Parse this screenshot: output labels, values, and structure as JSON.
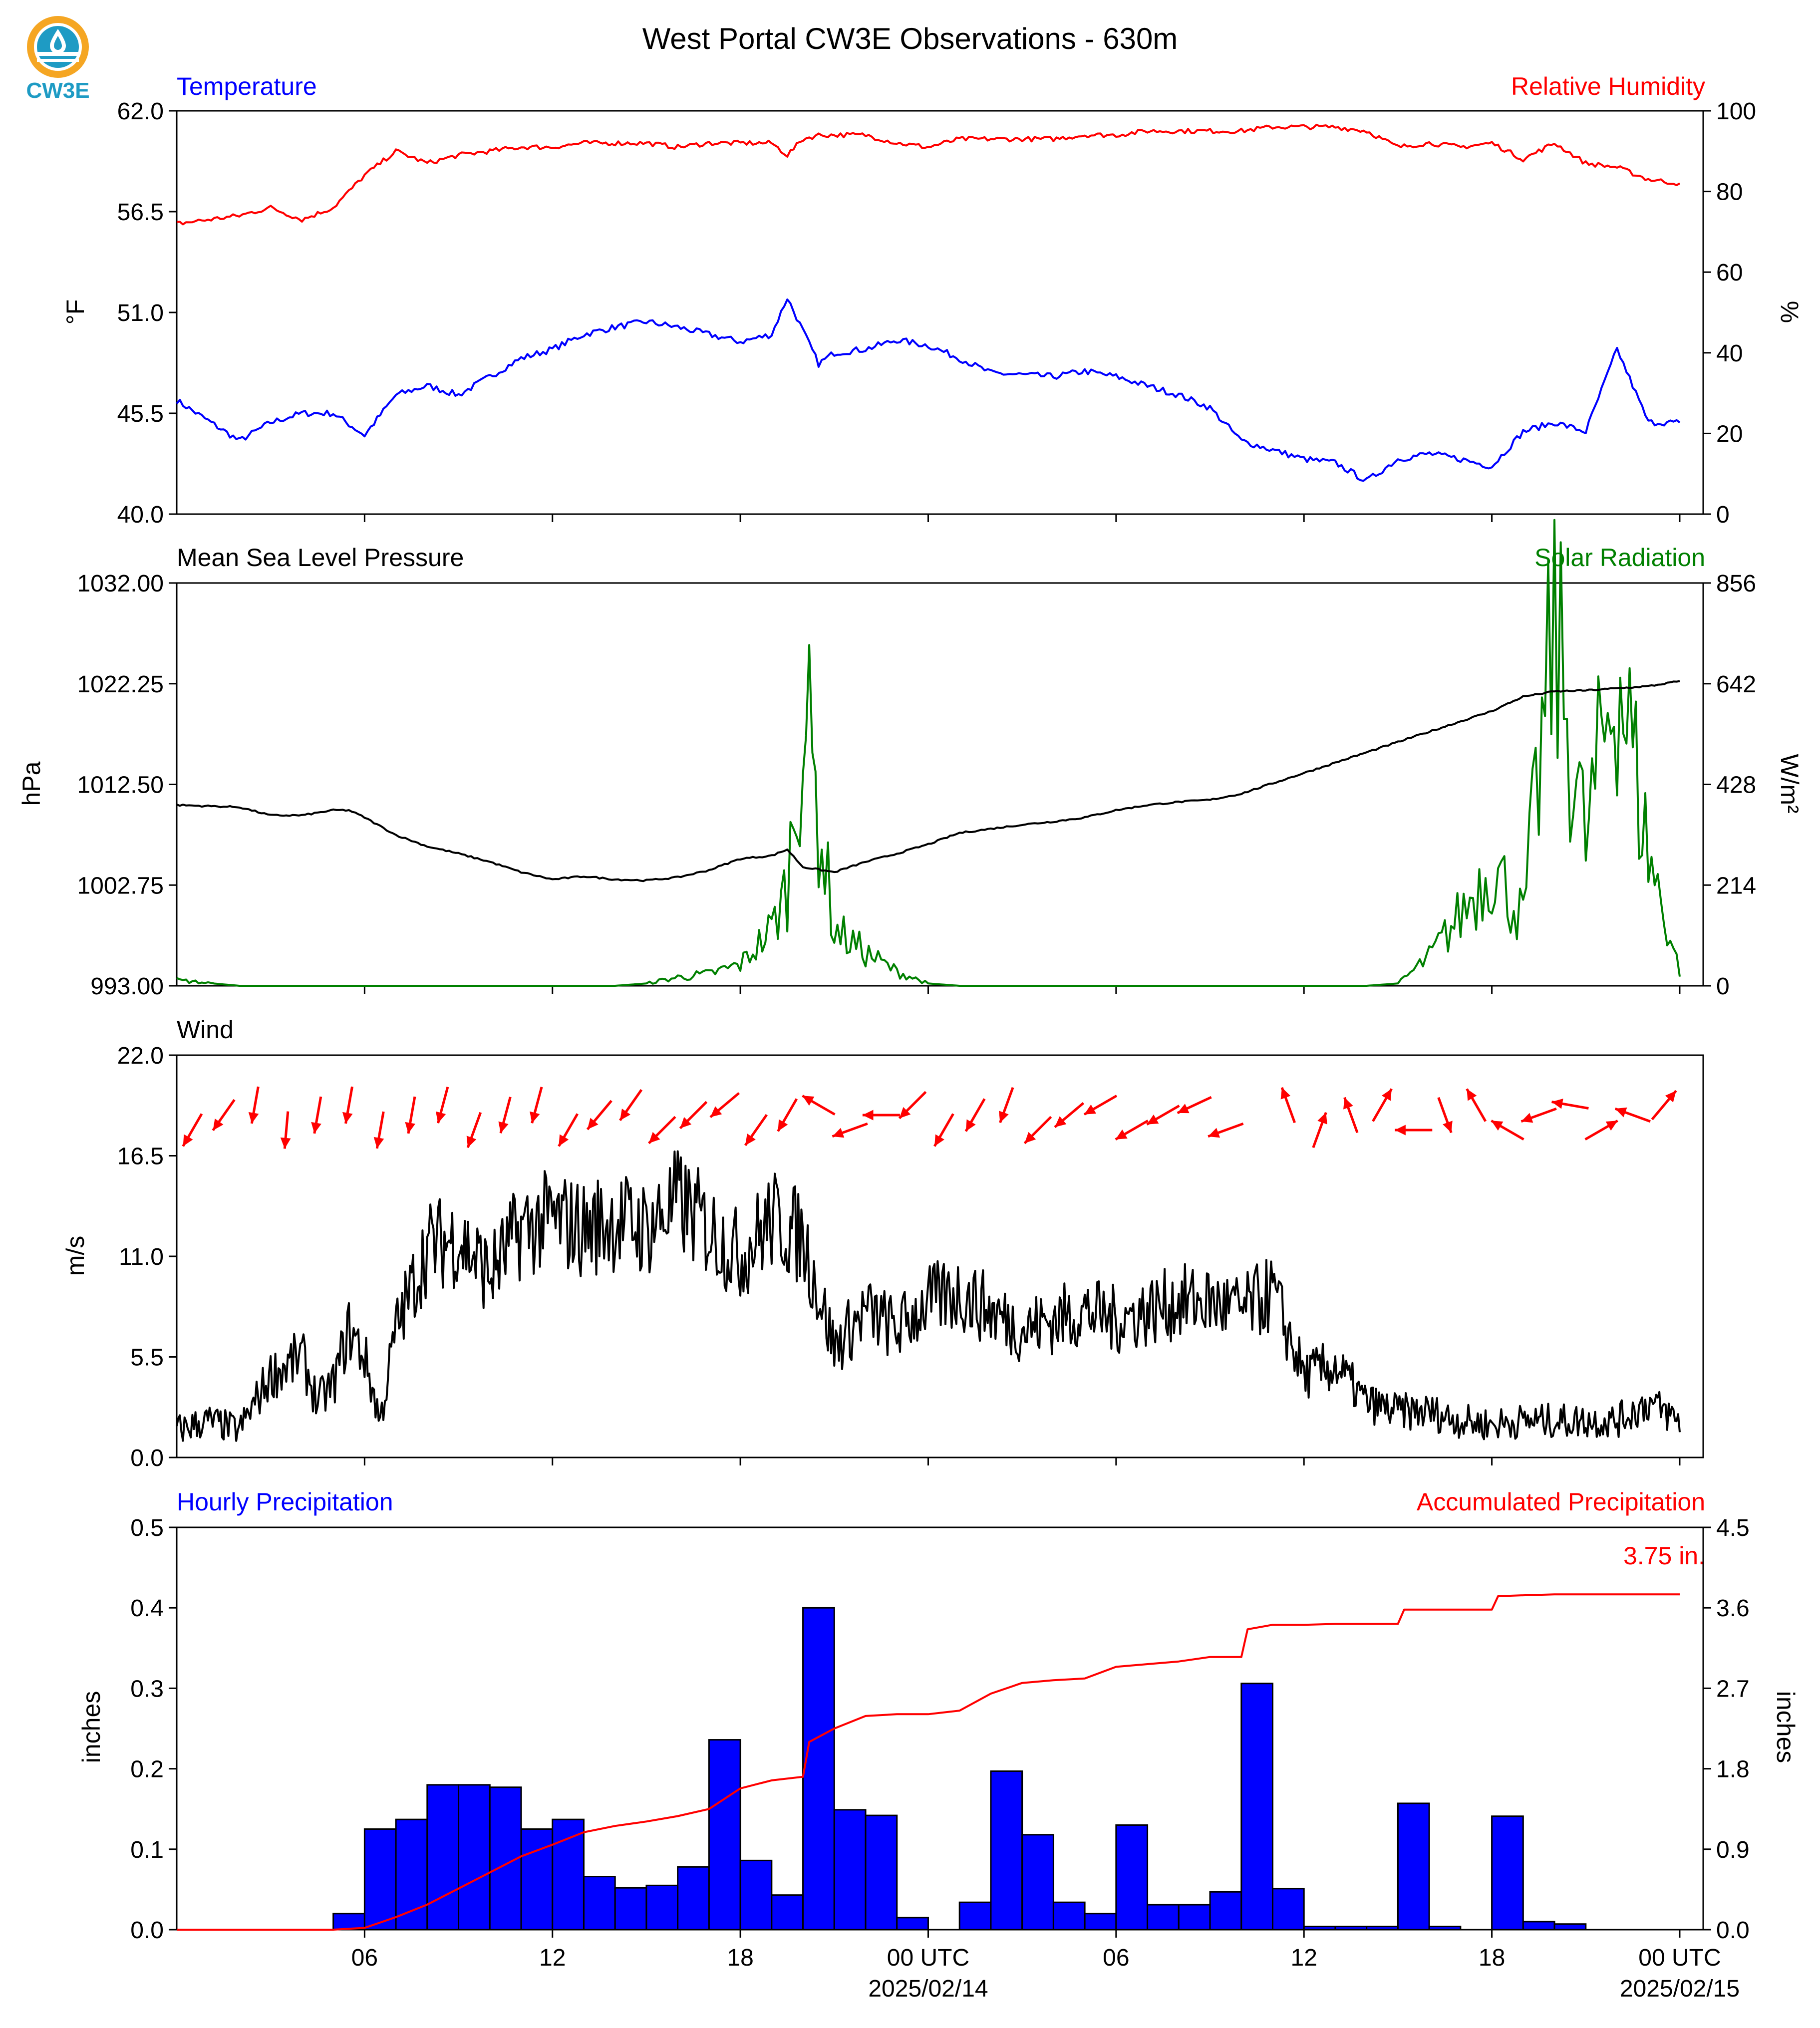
{
  "title": "West Portal CW3E Observations - 630m",
  "logo": {
    "text": "CW3E",
    "icon": "cw3e-drop-icon",
    "colors": {
      "orange": "#f5a623",
      "teal": "#1e9bc4"
    }
  },
  "x_axis": {
    "tick_labels": [
      "06",
      "12",
      "18",
      "00 UTC",
      "06",
      "12",
      "18",
      "00 UTC"
    ],
    "date_labels": [
      "2025/02/14",
      "2025/02/15"
    ]
  },
  "chart_data": [
    {
      "type": "line",
      "id": "temp_rh",
      "title_left": "Temperature",
      "title_right": "Relative Humidity",
      "ylabel_left": "°F",
      "ylabel_right": "%",
      "ylim_left": [
        40.0,
        62.0
      ],
      "ylim_right": [
        0,
        100
      ],
      "yticks_left": [
        "40.0",
        "45.5",
        "51.0",
        "56.5",
        "62.0"
      ],
      "yticks_right": [
        "0",
        "20",
        "40",
        "60",
        "80",
        "100"
      ],
      "x_hours": [
        0,
        2,
        3,
        4,
        5,
        6,
        7,
        8,
        9,
        10,
        11,
        12,
        13,
        14,
        15,
        16,
        17,
        18,
        19,
        19.5,
        20,
        20.5,
        21,
        22,
        23,
        24,
        25,
        26,
        27,
        28,
        29,
        30,
        31,
        32,
        33,
        34,
        35,
        36,
        37,
        38,
        39,
        40,
        41,
        42,
        43,
        44,
        45,
        46,
        47,
        48
      ],
      "series": [
        {
          "name": "Temperature",
          "color": "#0000ff",
          "axis": "left",
          "values": [
            46.2,
            44.0,
            45.0,
            45.5,
            45.5,
            44.3,
            46.5,
            47.0,
            46.5,
            47.5,
            48.5,
            49.0,
            49.8,
            50.2,
            50.5,
            50.2,
            49.8,
            49.4,
            49.8,
            51.8,
            50.0,
            48.2,
            48.8,
            49.0,
            49.5,
            49.2,
            48.5,
            47.7,
            47.6,
            47.5,
            47.8,
            47.5,
            47.0,
            46.5,
            45.8,
            44.0,
            43.5,
            43.0,
            42.8,
            41.8,
            43.0,
            43.3,
            43.0,
            42.6,
            44.5,
            45.0,
            44.5,
            49.0,
            45.0,
            45.0
          ]
        },
        {
          "name": "Relative Humidity",
          "color": "#ff0000",
          "axis": "right",
          "values": [
            72,
            74,
            76,
            73,
            76,
            84,
            90,
            87,
            89,
            90,
            91,
            91,
            92,
            92,
            92,
            91,
            92,
            92,
            92,
            89,
            93,
            94,
            94,
            94,
            92,
            91,
            93,
            93,
            93,
            93,
            94,
            94,
            95,
            95,
            95,
            95,
            96,
            96,
            96,
            95,
            91,
            92,
            91,
            92,
            88,
            92,
            87,
            86,
            83,
            82
          ]
        }
      ]
    },
    {
      "type": "line",
      "id": "pressure_solar",
      "title_left": "Mean Sea Level Pressure",
      "title_right": "Solar Radiation",
      "ylabel_left": "hPa",
      "ylabel_right": "W/m²",
      "ylim_left": [
        993.0,
        1032.0
      ],
      "ylim_right": [
        0,
        856
      ],
      "yticks_left": [
        "993.00",
        "1002.75",
        "1012.50",
        "1022.25",
        "1032.00"
      ],
      "yticks_right": [
        "0",
        "214",
        "428",
        "642",
        "856"
      ],
      "x_hours": [
        0,
        2,
        3,
        4,
        5,
        5.5,
        6,
        7,
        8,
        9,
        10,
        11,
        12,
        13,
        14,
        15,
        16,
        17,
        18,
        19,
        19.5,
        20,
        21,
        22,
        23,
        24,
        25,
        26,
        27,
        28,
        29,
        30,
        31,
        32,
        33,
        34,
        35,
        36,
        37,
        38,
        39,
        40,
        41,
        42,
        43,
        44,
        45,
        46,
        47,
        48
      ],
      "series": [
        {
          "name": "Mean Sea Level Pressure",
          "color": "#000000",
          "axis": "left",
          "values": [
            1010.5,
            1010.3,
            1009.5,
            1009.5,
            1010.0,
            1010.0,
            1009.3,
            1007.6,
            1006.5,
            1005.8,
            1005.0,
            1004.0,
            1003.3,
            1003.6,
            1003.3,
            1003.2,
            1003.5,
            1004.2,
            1005.3,
            1005.6,
            1006.2,
            1004.5,
            1004.0,
            1005.0,
            1005.8,
            1006.7,
            1007.8,
            1008.2,
            1008.6,
            1008.9,
            1009.3,
            1010.0,
            1010.5,
            1010.8,
            1011.0,
            1011.6,
            1012.6,
            1013.6,
            1014.6,
            1015.6,
            1016.6,
            1017.6,
            1018.6,
            1019.6,
            1021.0,
            1021.5,
            1021.6,
            1021.8,
            1022.0,
            1022.5
          ]
        },
        {
          "name": "Solar Radiation",
          "color": "#008000",
          "axis": "right",
          "values": [
            12,
            0,
            0,
            0,
            0,
            0,
            0,
            0,
            0,
            0,
            0,
            0,
            0,
            0,
            0,
            5,
            18,
            25,
            45,
            120,
            210,
            600,
            120,
            70,
            30,
            5,
            0,
            0,
            0,
            0,
            0,
            0,
            0,
            0,
            0,
            0,
            0,
            0,
            0,
            0,
            5,
            60,
            150,
            260,
            140,
            750,
            300,
            700,
            280,
            30
          ]
        }
      ]
    },
    {
      "type": "line",
      "id": "wind",
      "title_left": "Wind",
      "ylabel_left": "m/s",
      "ylim_left": [
        0.0,
        22.0
      ],
      "yticks_left": [
        "0.0",
        "5.5",
        "11.0",
        "16.5",
        "22.0"
      ],
      "x_hours": [
        0,
        1,
        2,
        3,
        4,
        4.5,
        5,
        5.5,
        6,
        6.5,
        7,
        8,
        9,
        10,
        11,
        12,
        13,
        14,
        15,
        16,
        17,
        18,
        19,
        20,
        21,
        22,
        23,
        24,
        25,
        26,
        27,
        28,
        29,
        30,
        31,
        32,
        33,
        34,
        35,
        36,
        37,
        38,
        39,
        40,
        41,
        42,
        43,
        44,
        45,
        46,
        47,
        48
      ],
      "series": [
        {
          "name": "Wind Speed",
          "color": "#000000",
          "axis": "left",
          "values": [
            1.5,
            2.0,
            1.5,
            4.5,
            5.5,
            3.0,
            4.0,
            7.0,
            5.5,
            2.0,
            7.0,
            11.5,
            12.0,
            10.0,
            12.5,
            13.0,
            12.5,
            13.0,
            12.5,
            14.0,
            12.5,
            11.0,
            13.0,
            12.0,
            6.0,
            8.0,
            7.0,
            8.5,
            9.0,
            8.0,
            7.0,
            7.5,
            8.0,
            7.5,
            8.0,
            8.5,
            8.5,
            8.0,
            9.0,
            4.5,
            5.0,
            3.0,
            2.5,
            2.5,
            2.0,
            1.8,
            2.0,
            2.0,
            2.0,
            2.0,
            3.0,
            2.0
          ]
        },
        {
          "name": "Wind Direction",
          "color": "#ff0000",
          "arrows_hours": [
            0.5,
            1.5,
            2.5,
            3.5,
            4.5,
            5.5,
            6.5,
            7.5,
            8.5,
            9.5,
            10.5,
            11.5,
            12.5,
            13.5,
            14.5,
            15.5,
            16.5,
            17.5,
            18.5,
            19.5,
            20.5,
            21.5,
            22.5,
            23.5,
            24.5,
            25.5,
            26.5,
            27.5,
            28.5,
            29.5,
            30.5,
            31.5,
            32.5,
            33.5,
            34.5,
            35.5,
            36.5,
            37.5,
            38.5,
            39.5,
            40.5,
            41.5,
            42.5,
            43.5,
            44.5,
            45.5,
            46.5,
            47.5
          ],
          "arrows_angle_deg": [
            210,
            215,
            190,
            185,
            190,
            190,
            190,
            190,
            195,
            200,
            195,
            195,
            210,
            220,
            215,
            225,
            225,
            230,
            215,
            210,
            300,
            250,
            270,
            225,
            210,
            210,
            200,
            225,
            230,
            240,
            240,
            240,
            245,
            250,
            -1,
            340,
            20,
            340,
            30,
            270,
            160,
            330,
            300,
            250,
            280,
            60,
            290,
            40
          ]
        }
      ]
    },
    {
      "type": "bar",
      "id": "precip",
      "title_left": "Hourly Precipitation",
      "title_right": "Accumulated Precipitation",
      "annotation": "3.75 in.",
      "ylabel_left": "inches",
      "ylabel_right": "inches",
      "ylim_left": [
        0.0,
        0.5
      ],
      "ylim_right": [
        0.0,
        4.5
      ],
      "yticks_left": [
        "0.0",
        "0.1",
        "0.2",
        "0.3",
        "0.4",
        "0.5"
      ],
      "yticks_right": [
        "0.0",
        "0.9",
        "1.8",
        "2.7",
        "3.6",
        "4.5"
      ],
      "bar_start_hours": [
        5,
        6,
        7,
        8,
        9,
        10,
        11,
        12,
        13,
        14,
        15,
        16,
        17,
        18,
        19,
        20,
        21,
        22,
        23,
        24,
        25,
        26,
        27,
        28,
        29,
        30,
        31,
        32,
        33,
        34,
        35,
        36,
        37,
        38,
        39,
        40,
        41,
        42,
        43,
        44
      ],
      "series": [
        {
          "name": "Hourly Precipitation",
          "color": "#0000ff",
          "axis": "left",
          "values": [
            0.02,
            0.125,
            0.137,
            0.18,
            0.18,
            0.177,
            0.125,
            0.137,
            0.066,
            0.052,
            0.055,
            0.078,
            0.236,
            0.086,
            0.043,
            0.4,
            0.149,
            0.142,
            0.015,
            0.0,
            0.034,
            0.197,
            0.118,
            0.034,
            0.02,
            0.13,
            0.031,
            0.031,
            0.047,
            0.306,
            0.051,
            0.004,
            0.004,
            0.004,
            0.157,
            0.004,
            0.0,
            0.141,
            0.01,
            0.007
          ]
        },
        {
          "name": "Accumulated Precipitation",
          "color": "#ff0000",
          "axis": "right",
          "x_hours": [
            0,
            5,
            6,
            7,
            8,
            9,
            10,
            11,
            12,
            13,
            14,
            15,
            16,
            17,
            18,
            19,
            20,
            20.2,
            21,
            22,
            23,
            24,
            25,
            26,
            27,
            28,
            29,
            30,
            31,
            32,
            33,
            34,
            34.2,
            35,
            36,
            37,
            38,
            39,
            39.2,
            40,
            41,
            42,
            42.2,
            43,
            44,
            45,
            46,
            47,
            48
          ],
          "values": [
            0.0,
            0.0,
            0.02,
            0.14,
            0.28,
            0.46,
            0.64,
            0.82,
            0.95,
            1.09,
            1.16,
            1.21,
            1.27,
            1.35,
            1.58,
            1.67,
            1.71,
            2.1,
            2.25,
            2.39,
            2.41,
            2.41,
            2.45,
            2.64,
            2.76,
            2.79,
            2.81,
            2.94,
            2.97,
            3.0,
            3.05,
            3.05,
            3.36,
            3.41,
            3.41,
            3.42,
            3.42,
            3.42,
            3.58,
            3.58,
            3.58,
            3.58,
            3.73,
            3.74,
            3.75,
            3.75,
            3.75,
            3.75,
            3.75
          ]
        }
      ]
    }
  ]
}
